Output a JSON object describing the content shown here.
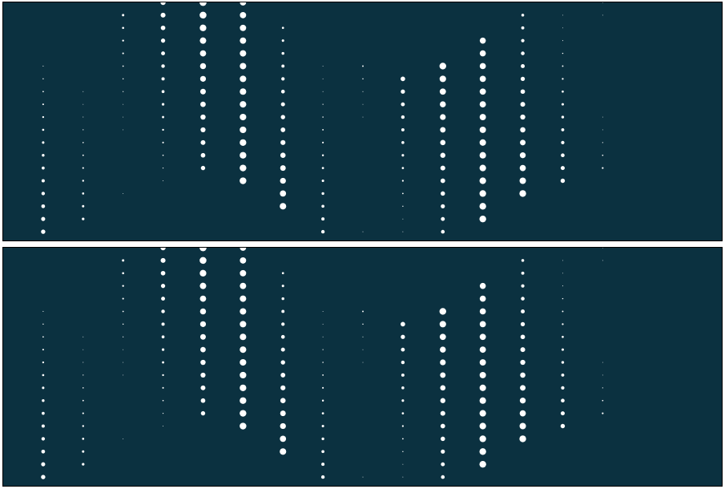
{
  "colors": {
    "background": "#0b3140",
    "dot": "#ffffff",
    "border": "#000000",
    "page": "#ffffff"
  },
  "panels": [
    {
      "id": "top"
    },
    {
      "id": "bottom"
    }
  ],
  "pattern": {
    "columns": [
      {
        "col": 0,
        "row_start": 5,
        "row_end": 19,
        "size_start": 0.08,
        "size_end": 0.42
      },
      {
        "col": 1,
        "row_start": 7,
        "row_end": 17,
        "size_start": 0.03,
        "size_end": 0.24
      },
      {
        "col": 2,
        "row_start": 1,
        "row_end": 10,
        "size_start": 0.22,
        "size_end": 0.02
      },
      {
        "col": 2,
        "row_start": 15,
        "row_end": 15,
        "size_start": 0.03,
        "size_end": 0.03
      },
      {
        "col": 3,
        "row_start": 0,
        "row_end": 14,
        "size_start": 0.48,
        "size_end": 0.06
      },
      {
        "col": 4,
        "row_start": 0,
        "row_end": 13,
        "size_start": 0.65,
        "size_end": 0.4
      },
      {
        "col": 5,
        "row_start": 0,
        "row_end": 14,
        "size_start": 0.58,
        "size_end": 0.62
      },
      {
        "col": 6,
        "row_start": 2,
        "row_end": 16,
        "size_start": 0.2,
        "size_end": 0.6
      },
      {
        "col": 7,
        "row_start": 5,
        "row_end": 18,
        "size_start": 0.02,
        "size_end": 0.32
      },
      {
        "col": 8,
        "row_start": 5,
        "row_end": 9,
        "size_start": 0.14,
        "size_end": 0.02
      },
      {
        "col": 8,
        "row_start": 18,
        "row_end": 18,
        "size_start": 0.02,
        "size_end": 0.02
      },
      {
        "col": 9,
        "row_start": 6,
        "row_end": 18,
        "size_start": 0.42,
        "size_end": 0.04
      },
      {
        "col": 10,
        "row_start": 5,
        "row_end": 18,
        "size_start": 0.62,
        "size_end": 0.34
      },
      {
        "col": 11,
        "row_start": 3,
        "row_end": 17,
        "size_start": 0.56,
        "size_end": 0.62
      },
      {
        "col": 12,
        "row_start": 1,
        "row_end": 15,
        "size_start": 0.26,
        "size_end": 0.62
      },
      {
        "col": 13,
        "row_start": 1,
        "row_end": 14,
        "size_start": 0.02,
        "size_end": 0.4
      },
      {
        "col": 14,
        "row_start": 0,
        "row_end": 1,
        "size_start": 0.04,
        "size_end": 0.02
      },
      {
        "col": 14,
        "row_start": 9,
        "row_end": 13,
        "size_start": 0.02,
        "size_end": 0.16
      }
    ]
  }
}
